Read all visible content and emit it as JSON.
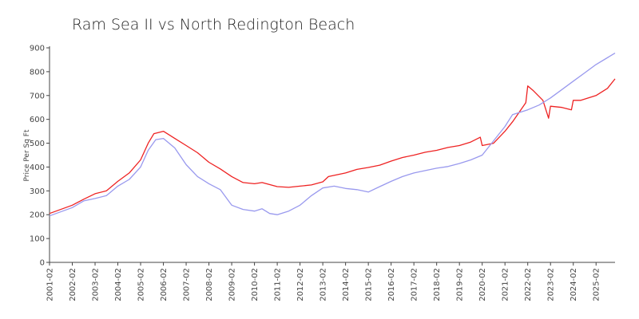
{
  "chart_data": {
    "type": "line",
    "title": "Ram Sea II vs North Redington Beach",
    "xlabel": "",
    "ylabel": "Price Per Sq Ft",
    "ylim": [
      0,
      900
    ],
    "xlim": [
      "2001-02",
      "2025-12"
    ],
    "y_ticks": [
      0,
      100,
      200,
      300,
      400,
      500,
      600,
      700,
      800,
      900
    ],
    "x_ticks": [
      "2001-02",
      "2002-02",
      "2003-02",
      "2004-02",
      "2005-02",
      "2006-02",
      "2007-02",
      "2008-02",
      "2009-02",
      "2010-02",
      "2011-02",
      "2012-02",
      "2013-02",
      "2014-02",
      "2015-02",
      "2016-02",
      "2017-02",
      "2018-02",
      "2019-02",
      "2020-02",
      "2021-02",
      "2022-02",
      "2023-02",
      "2024-02",
      "2025-02"
    ],
    "grid": false,
    "legend": "none",
    "series": [
      {
        "color": "#ee2222",
        "points": [
          [
            "2001-02",
            205
          ],
          [
            "2002-02",
            240
          ],
          [
            "2002-08",
            265
          ],
          [
            "2003-02",
            288
          ],
          [
            "2003-08",
            300
          ],
          [
            "2004-02",
            340
          ],
          [
            "2004-08",
            375
          ],
          [
            "2005-02",
            430
          ],
          [
            "2005-06",
            500
          ],
          [
            "2005-09",
            540
          ],
          [
            "2006-02",
            550
          ],
          [
            "2006-08",
            520
          ],
          [
            "2007-02",
            490
          ],
          [
            "2007-08",
            460
          ],
          [
            "2008-02",
            420
          ],
          [
            "2008-08",
            392
          ],
          [
            "2009-02",
            360
          ],
          [
            "2009-08",
            335
          ],
          [
            "2010-02",
            330
          ],
          [
            "2010-06",
            335
          ],
          [
            "2011-02",
            318
          ],
          [
            "2011-08",
            315
          ],
          [
            "2012-02",
            320
          ],
          [
            "2012-08",
            325
          ],
          [
            "2013-02",
            338
          ],
          [
            "2013-05",
            360
          ],
          [
            "2014-02",
            375
          ],
          [
            "2014-08",
            390
          ],
          [
            "2015-02",
            398
          ],
          [
            "2015-08",
            408
          ],
          [
            "2016-02",
            425
          ],
          [
            "2016-08",
            440
          ],
          [
            "2017-02",
            450
          ],
          [
            "2017-08",
            462
          ],
          [
            "2018-02",
            470
          ],
          [
            "2018-08",
            482
          ],
          [
            "2019-02",
            490
          ],
          [
            "2019-08",
            505
          ],
          [
            "2020-01",
            525
          ],
          [
            "2020-02",
            490
          ],
          [
            "2020-08",
            500
          ],
          [
            "2021-02",
            550
          ],
          [
            "2021-06",
            590
          ],
          [
            "2022-01",
            670
          ],
          [
            "2022-02",
            740
          ],
          [
            "2022-05",
            720
          ],
          [
            "2022-10",
            680
          ],
          [
            "2023-01",
            605
          ],
          [
            "2023-02",
            655
          ],
          [
            "2023-08",
            650
          ],
          [
            "2024-01",
            640
          ],
          [
            "2024-02",
            680
          ],
          [
            "2024-06",
            680
          ],
          [
            "2025-02",
            700
          ],
          [
            "2025-08",
            730
          ],
          [
            "2025-12",
            770
          ]
        ]
      },
      {
        "color": "#9999ee",
        "points": [
          [
            "2001-02",
            195
          ],
          [
            "2002-02",
            230
          ],
          [
            "2002-08",
            258
          ],
          [
            "2003-02",
            268
          ],
          [
            "2003-08",
            280
          ],
          [
            "2004-02",
            320
          ],
          [
            "2004-08",
            348
          ],
          [
            "2005-02",
            400
          ],
          [
            "2005-06",
            470
          ],
          [
            "2005-10",
            515
          ],
          [
            "2006-02",
            520
          ],
          [
            "2006-08",
            480
          ],
          [
            "2007-02",
            410
          ],
          [
            "2007-08",
            360
          ],
          [
            "2008-02",
            330
          ],
          [
            "2008-08",
            305
          ],
          [
            "2009-02",
            240
          ],
          [
            "2009-08",
            222
          ],
          [
            "2010-02",
            215
          ],
          [
            "2010-06",
            225
          ],
          [
            "2010-10",
            205
          ],
          [
            "2011-02",
            200
          ],
          [
            "2011-08",
            215
          ],
          [
            "2012-02",
            240
          ],
          [
            "2012-08",
            280
          ],
          [
            "2013-02",
            312
          ],
          [
            "2013-08",
            320
          ],
          [
            "2014-02",
            310
          ],
          [
            "2014-08",
            305
          ],
          [
            "2015-02",
            295
          ],
          [
            "2015-08",
            318
          ],
          [
            "2016-02",
            340
          ],
          [
            "2016-08",
            360
          ],
          [
            "2017-02",
            375
          ],
          [
            "2017-08",
            385
          ],
          [
            "2018-02",
            395
          ],
          [
            "2018-08",
            402
          ],
          [
            "2019-02",
            415
          ],
          [
            "2019-08",
            430
          ],
          [
            "2020-02",
            450
          ],
          [
            "2020-08",
            510
          ],
          [
            "2021-02",
            570
          ],
          [
            "2021-06",
            620
          ],
          [
            "2022-02",
            640
          ],
          [
            "2022-08",
            660
          ],
          [
            "2023-02",
            690
          ],
          [
            "2023-08",
            725
          ],
          [
            "2024-02",
            760
          ],
          [
            "2024-08",
            795
          ],
          [
            "2025-02",
            830
          ],
          [
            "2025-12",
            878
          ]
        ]
      }
    ]
  }
}
